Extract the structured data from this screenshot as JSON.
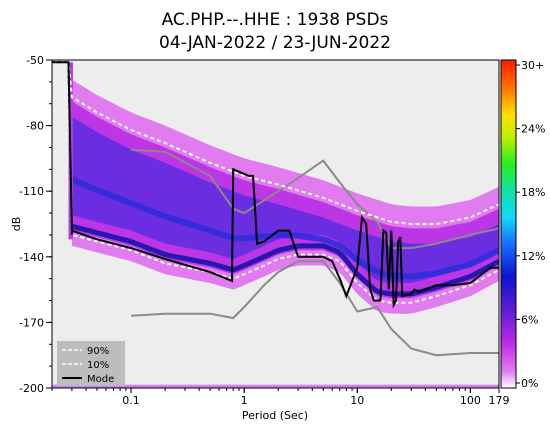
{
  "chart_data": {
    "type": "line",
    "title_line1": "AC.PHP.--.HHE : 1938 PSDs",
    "title_line2": "04-JAN-2022 / 23-JUN-2022",
    "xlabel": "Period (Sec)",
    "ylabel": "dB",
    "x_scale": "log",
    "xlim": [
      0.02,
      179
    ],
    "ylim": [
      -200,
      -50
    ],
    "x_ticks": [
      {
        "value": 0.1,
        "label": "0.1"
      },
      {
        "value": 1,
        "label": "1"
      },
      {
        "value": 10,
        "label": "10"
      },
      {
        "value": 100,
        "label": "100"
      },
      {
        "value": 179,
        "label": "179"
      }
    ],
    "y_ticks": [
      {
        "value": -50,
        "label": "-50"
      },
      {
        "value": -80,
        "label": "-80"
      },
      {
        "value": -110,
        "label": "-110"
      },
      {
        "value": -140,
        "label": "-140"
      },
      {
        "value": -170,
        "label": "-170"
      },
      {
        "value": -200,
        "label": "-200"
      }
    ],
    "colorbar": {
      "ticks": [
        "30+",
        "24%",
        "18%",
        "12%",
        "6%",
        "0%"
      ]
    },
    "legend": {
      "placement": "bottom-left",
      "entries": [
        {
          "label": "90%",
          "style": "dashed",
          "color": "#ffffff"
        },
        {
          "label": "10%",
          "style": "dashed",
          "color": "#ffffff"
        },
        {
          "label": "Mode",
          "style": "solid",
          "color": "#000000"
        }
      ]
    },
    "series": [
      {
        "name": "90%",
        "x": [
          0.02,
          0.028,
          0.03,
          0.05,
          0.1,
          0.2,
          0.5,
          1,
          2,
          5,
          10,
          20,
          30,
          50,
          100,
          179
        ],
        "y": [
          -51,
          -51,
          -67,
          -74,
          -82,
          -88,
          -97,
          -103,
          -107,
          -113,
          -119,
          -124,
          -125,
          -125,
          -122,
          -116
        ]
      },
      {
        "name": "10%",
        "x": [
          0.028,
          0.03,
          0.05,
          0.1,
          0.2,
          0.5,
          0.8,
          1,
          1.5,
          2,
          3,
          5,
          7,
          10,
          15,
          20,
          30,
          50,
          100,
          179
        ],
        "y": [
          -54,
          -130,
          -133,
          -137,
          -143,
          -147,
          -150,
          -148,
          -144,
          -141,
          -139,
          -139,
          -142,
          -152,
          -160,
          -161,
          -161,
          -158,
          -153,
          -146
        ]
      },
      {
        "name": "Mode",
        "x": [
          0.02,
          0.028,
          0.03,
          0.05,
          0.1,
          0.2,
          0.5,
          0.78,
          0.8,
          1.1,
          1.2,
          1.3,
          1.5,
          2,
          2.5,
          3,
          4,
          5,
          6,
          7,
          8,
          10,
          11,
          12,
          13,
          14,
          15,
          16,
          17,
          18,
          19,
          20,
          21,
          22,
          23,
          24,
          25,
          30,
          32,
          35,
          40,
          50,
          70,
          100,
          150,
          179
        ],
        "y": [
          -51,
          -51,
          -128,
          -132,
          -136,
          -141,
          -147,
          -151,
          -100,
          -103,
          -103,
          -134,
          -133,
          -128,
          -128,
          -140,
          -140,
          -140,
          -142,
          -150,
          -158,
          -145,
          -122,
          -125,
          -155,
          -160,
          -160,
          -160,
          -128,
          -129,
          -155,
          -128,
          -162,
          -160,
          -133,
          -131,
          -158,
          -157,
          -155,
          -156,
          -155,
          -153,
          -153,
          -152,
          -145,
          -145
        ]
      },
      {
        "name": "",
        "x": [
          0.1,
          0.2,
          0.5,
          0.8,
          1,
          2,
          3,
          5,
          7,
          10,
          15,
          20,
          30,
          50,
          100,
          179
        ],
        "y": [
          -91,
          -92,
          -103,
          -118,
          -120,
          -110,
          -104,
          -96,
          -106,
          -116,
          -124,
          -136,
          -136,
          -134,
          -130,
          -127
        ]
      },
      {
        "name": "",
        "x": [
          0.1,
          0.2,
          0.5,
          0.8,
          1,
          1.5,
          2,
          3,
          5,
          7,
          10,
          15,
          20,
          30,
          50,
          100,
          179
        ],
        "y": [
          -167,
          -166,
          -166,
          -168,
          -163,
          -153,
          -147,
          -142,
          -142,
          -152,
          -165,
          -163,
          -173,
          -182,
          -185,
          -184,
          -184
        ]
      }
    ]
  }
}
